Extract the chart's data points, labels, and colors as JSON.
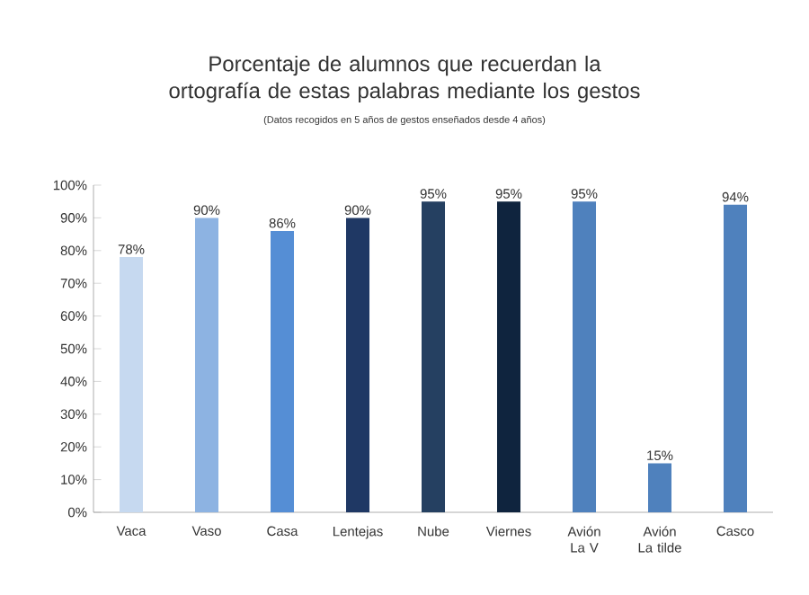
{
  "chart_data": {
    "type": "bar",
    "title": "Porcentaje de alumnos que recuerdan la ortografía de estas palabras mediante los gestos",
    "subtitle": "(Datos recogidos en 5 años de gestos enseñados desde 4 años)",
    "categories": [
      "Vaca",
      "Vaso",
      "Casa",
      "Lentejas",
      "Nube",
      "Viernes",
      "Avión La V",
      "Avión La tilde",
      "Casco"
    ],
    "values": [
      78,
      90,
      86,
      90,
      95,
      95,
      95,
      15,
      94
    ],
    "colors": [
      "#c6d9f0",
      "#8db3e2",
      "#558ed5",
      "#1f3864",
      "#254061",
      "#0f243e",
      "#4f81bd",
      "#4f81bd",
      "#4f81bd"
    ],
    "value_labels": [
      "78%",
      "90%",
      "86%",
      "90%",
      "95%",
      "95%",
      "95%",
      "15%",
      "94%"
    ],
    "ylim": [
      0,
      100
    ],
    "yticks": [
      {
        "value": 0,
        "label": "0%"
      },
      {
        "value": 10,
        "label": "10%"
      },
      {
        "value": 20,
        "label": "20%"
      },
      {
        "value": 30,
        "label": "30%"
      },
      {
        "value": 40,
        "label": "40%"
      },
      {
        "value": 50,
        "label": "50%"
      },
      {
        "value": 60,
        "label": "60%"
      },
      {
        "value": 70,
        "label": "70%"
      },
      {
        "value": 80,
        "label": "80%"
      },
      {
        "value": 90,
        "label": "90%"
      },
      {
        "value": 100,
        "label": "100%"
      }
    ],
    "grid": false
  }
}
